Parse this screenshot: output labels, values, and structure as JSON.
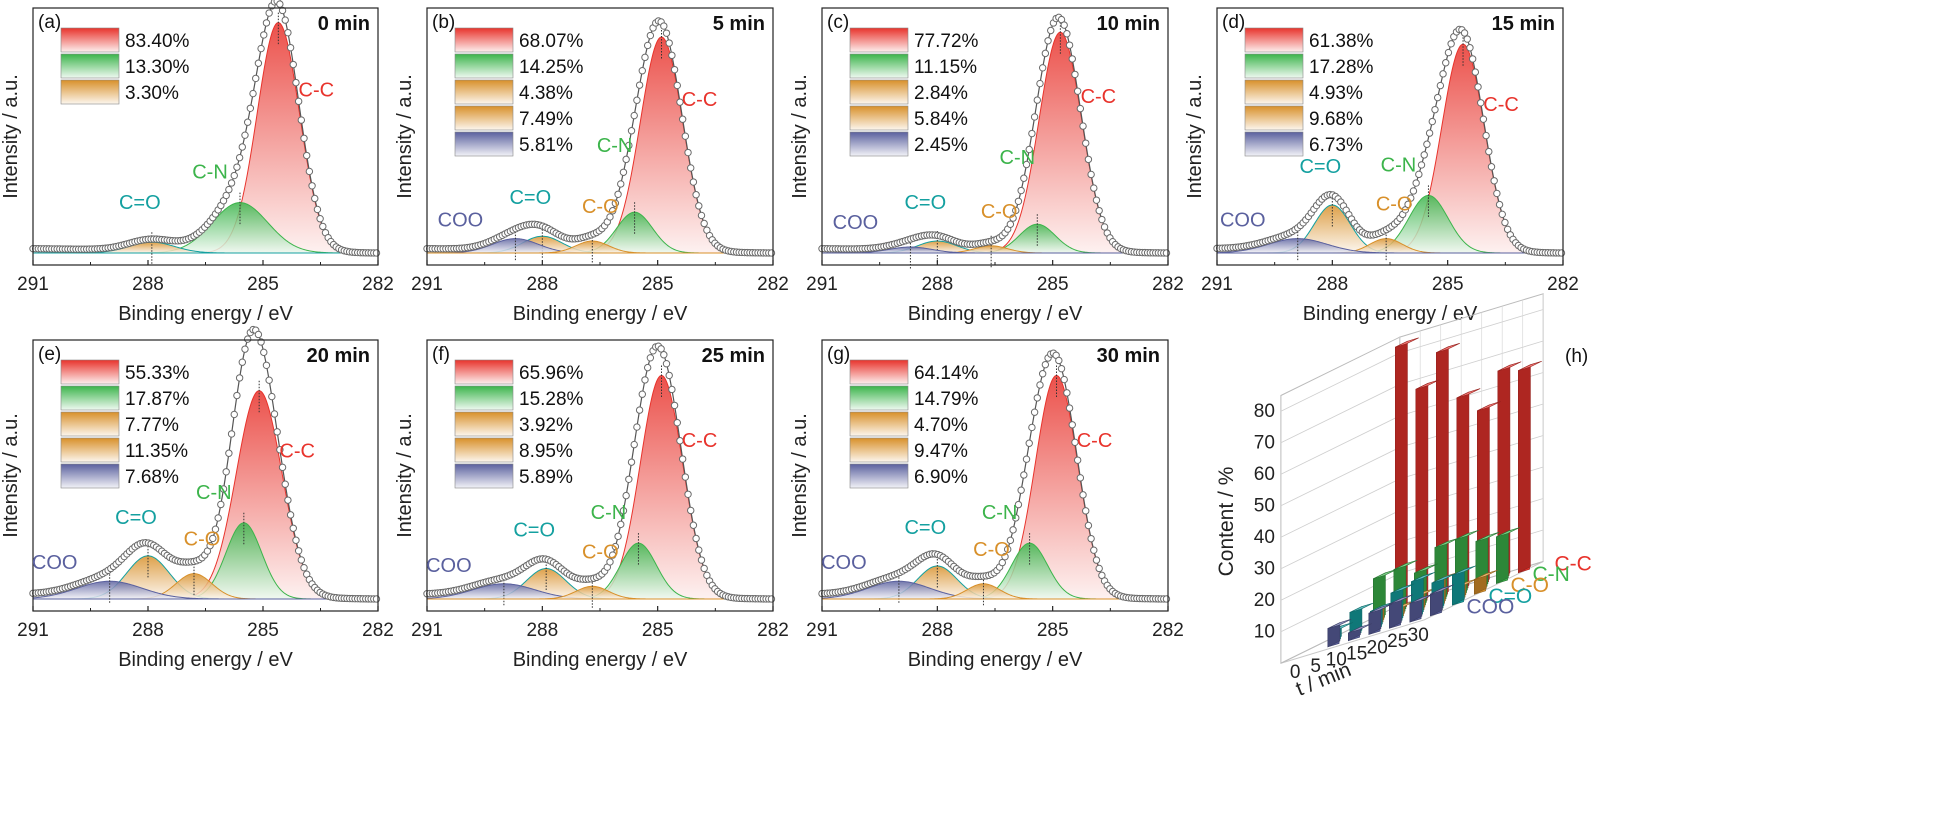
{
  "colors": {
    "C-C": "#e8332c",
    "C-N": "#3cb44b",
    "C-O": "#d8902a",
    "C=O": "#14a0a0",
    "COO": "#5a609e",
    "fit": "#555555",
    "axis": "#222222"
  },
  "chart_data": [
    {
      "type": "line",
      "panel": "(a)",
      "time": "0 min",
      "xlabel": "Binding energy / eV",
      "ylabel": "Intensity / a.u.",
      "xlim": [
        291,
        282
      ],
      "x_ticks": [
        291,
        288,
        285,
        282
      ],
      "tick_labels": [
        "291",
        "288",
        "285",
        "282"
      ],
      "peaks": [
        {
          "name": "C-C",
          "position": 284.6,
          "percent": "83.40%",
          "height": 0.96,
          "fwhm": 1.3
        },
        {
          "name": "C-N",
          "position": 285.6,
          "percent": "13.30%",
          "height": 0.21,
          "fwhm": 1.7
        },
        {
          "name": "C=O",
          "position": 287.9,
          "percent": "3.30%",
          "height": 0.045,
          "fwhm": 1.4
        }
      ],
      "legend": [
        "83.40%",
        "13.30%",
        "3.30%"
      ]
    },
    {
      "type": "line",
      "panel": "(b)",
      "time": "5 min",
      "xlabel": "Binding energy / eV",
      "ylabel": "Intensity / a.u.",
      "xlim": [
        291,
        282
      ],
      "x_ticks": [
        291,
        288,
        285,
        282
      ],
      "tick_labels": [
        "291",
        "288",
        "285",
        "282"
      ],
      "peaks": [
        {
          "name": "C-C",
          "position": 284.9,
          "percent": "68.07%",
          "height": 0.9,
          "fwhm": 1.3
        },
        {
          "name": "C-N",
          "position": 285.6,
          "percent": "14.25%",
          "height": 0.17,
          "fwhm": 1.1
        },
        {
          "name": "C-O",
          "position": 286.7,
          "percent": "4.38%",
          "height": 0.05,
          "fwhm": 1.0
        },
        {
          "name": "C=O",
          "position": 288.0,
          "percent": "7.49%",
          "height": 0.07,
          "fwhm": 1.2
        },
        {
          "name": "COO",
          "position": 288.7,
          "percent": "5.81%",
          "height": 0.06,
          "fwhm": 1.4
        }
      ],
      "legend": [
        "68.07%",
        "14.25%",
        "4.38%",
        "7.49%",
        "5.81%"
      ]
    },
    {
      "type": "line",
      "panel": "(c)",
      "time": "10 min",
      "xlabel": "Binding energy / eV",
      "ylabel": "Intensity / a.u.",
      "xlim": [
        291,
        282
      ],
      "x_ticks": [
        291,
        288,
        285,
        282
      ],
      "tick_labels": [
        "291",
        "288",
        "285",
        "282"
      ],
      "peaks": [
        {
          "name": "C-C",
          "position": 284.8,
          "percent": "77.72%",
          "height": 0.92,
          "fwhm": 1.3
        },
        {
          "name": "C-N",
          "position": 285.4,
          "percent": "11.15%",
          "height": 0.12,
          "fwhm": 1.1
        },
        {
          "name": "C-O",
          "position": 286.6,
          "percent": "2.84%",
          "height": 0.03,
          "fwhm": 1.0
        },
        {
          "name": "C=O",
          "position": 288.0,
          "percent": "5.84%",
          "height": 0.05,
          "fwhm": 1.2
        },
        {
          "name": "COO",
          "position": 288.7,
          "percent": "2.45%",
          "height": 0.025,
          "fwhm": 1.3
        }
      ],
      "legend": [
        "77.72%",
        "11.15%",
        "2.84%",
        "5.84%",
        "2.45%"
      ]
    },
    {
      "type": "line",
      "panel": "(d)",
      "time": "15 min",
      "xlabel": "Binding energy / eV",
      "ylabel": "Intensity / a.u.",
      "xlim": [
        291,
        282
      ],
      "x_ticks": [
        291,
        288,
        285,
        282
      ],
      "tick_labels": [
        "291",
        "288",
        "285",
        "282"
      ],
      "peaks": [
        {
          "name": "C-C",
          "position": 284.6,
          "percent": "61.38%",
          "height": 0.87,
          "fwhm": 1.3
        },
        {
          "name": "C-N",
          "position": 285.5,
          "percent": "17.28%",
          "height": 0.24,
          "fwhm": 1.2
        },
        {
          "name": "C-O",
          "position": 286.6,
          "percent": "4.93%",
          "height": 0.06,
          "fwhm": 1.0
        },
        {
          "name": "C=O",
          "position": 288.0,
          "percent": "9.68%",
          "height": 0.2,
          "fwhm": 1.1
        },
        {
          "name": "COO",
          "position": 288.9,
          "percent": "6.73%",
          "height": 0.06,
          "fwhm": 1.8
        }
      ],
      "legend": [
        "61.38%",
        "17.28%",
        "4.93%",
        "9.68%",
        "6.73%"
      ]
    },
    {
      "type": "line",
      "panel": "(e)",
      "time": "20 min",
      "xlabel": "Binding energy / eV",
      "ylabel": "Intensity / a.u.",
      "xlim": [
        291,
        282
      ],
      "x_ticks": [
        291,
        288,
        285,
        282
      ],
      "tick_labels": [
        "291",
        "288",
        "285",
        "282"
      ],
      "peaks": [
        {
          "name": "C-C",
          "position": 285.1,
          "percent": "55.33%",
          "height": 0.82,
          "fwhm": 1.4
        },
        {
          "name": "C-N",
          "position": 285.5,
          "percent": "17.87%",
          "height": 0.3,
          "fwhm": 1.1
        },
        {
          "name": "C-O",
          "position": 286.8,
          "percent": "7.77%",
          "height": 0.1,
          "fwhm": 1.1
        },
        {
          "name": "C=O",
          "position": 288.0,
          "percent": "11.35%",
          "height": 0.17,
          "fwhm": 1.3
        },
        {
          "name": "COO",
          "position": 289.0,
          "percent": "7.68%",
          "height": 0.07,
          "fwhm": 2.0
        }
      ],
      "legend": [
        "55.33%",
        "17.87%",
        "7.77%",
        "11.35%",
        "7.68%"
      ]
    },
    {
      "type": "line",
      "panel": "(f)",
      "time": "25 min",
      "xlabel": "Binding energy / eV",
      "ylabel": "Intensity / a.u.",
      "xlim": [
        291,
        282
      ],
      "x_ticks": [
        291,
        288,
        285,
        282
      ],
      "tick_labels": [
        "291",
        "288",
        "285",
        "282"
      ],
      "peaks": [
        {
          "name": "C-C",
          "position": 284.9,
          "percent": "65.96%",
          "height": 0.88,
          "fwhm": 1.3
        },
        {
          "name": "C-N",
          "position": 285.5,
          "percent": "15.28%",
          "height": 0.22,
          "fwhm": 1.1
        },
        {
          "name": "C-O",
          "position": 286.7,
          "percent": "3.92%",
          "height": 0.05,
          "fwhm": 1.0
        },
        {
          "name": "C=O",
          "position": 287.9,
          "percent": "8.95%",
          "height": 0.12,
          "fwhm": 1.2
        },
        {
          "name": "COO",
          "position": 289.0,
          "percent": "5.89%",
          "height": 0.06,
          "fwhm": 1.9
        }
      ],
      "legend": [
        "65.96%",
        "15.28%",
        "3.92%",
        "8.95%",
        "5.89%"
      ]
    },
    {
      "type": "line",
      "panel": "(g)",
      "time": "30 min",
      "xlabel": "Binding energy / eV",
      "ylabel": "Intensity / a.u.",
      "xlim": [
        291,
        282
      ],
      "x_ticks": [
        291,
        288,
        285,
        282
      ],
      "tick_labels": [
        "291",
        "288",
        "285",
        "282"
      ],
      "peaks": [
        {
          "name": "C-C",
          "position": 284.9,
          "percent": "64.14%",
          "height": 0.88,
          "fwhm": 1.3
        },
        {
          "name": "C-N",
          "position": 285.6,
          "percent": "14.79%",
          "height": 0.22,
          "fwhm": 1.1
        },
        {
          "name": "C-O",
          "position": 286.8,
          "percent": "4.70%",
          "height": 0.06,
          "fwhm": 1.0
        },
        {
          "name": "C=O",
          "position": 288.0,
          "percent": "9.47%",
          "height": 0.13,
          "fwhm": 1.2
        },
        {
          "name": "COO",
          "position": 289.0,
          "percent": "6.90%",
          "height": 0.07,
          "fwhm": 1.9
        }
      ],
      "legend": [
        "64.14%",
        "14.79%",
        "4.70%",
        "9.47%",
        "6.90%"
      ]
    },
    {
      "type": "bar",
      "panel": "(h)",
      "chart_subtype": "3d-bar",
      "zlabel": "Content / %",
      "xlabel": "t / min",
      "times": [
        "0",
        "5",
        "10",
        "15",
        "20",
        "25",
        "30"
      ],
      "time_ticks": [
        "0",
        "5",
        "10",
        "15",
        "20",
        "25",
        "30"
      ],
      "content_ticks": [
        "10",
        "20",
        "30",
        "40",
        "50",
        "60",
        "70",
        "80"
      ],
      "zlim": [
        0,
        85
      ],
      "series": [
        {
          "name": "C-C",
          "values": [
            83.4,
            68.07,
            77.72,
            61.38,
            55.33,
            65.96,
            64.14
          ]
        },
        {
          "name": "C-N",
          "values": [
            13.3,
            14.25,
            11.15,
            17.28,
            17.87,
            15.28,
            14.79
          ]
        },
        {
          "name": "C-O",
          "values": [
            0,
            4.38,
            2.84,
            4.93,
            7.77,
            3.92,
            4.7
          ]
        },
        {
          "name": "C=O",
          "values": [
            3.3,
            7.49,
            5.84,
            9.68,
            11.35,
            8.95,
            9.47
          ]
        },
        {
          "name": "COO",
          "values": [
            0,
            5.81,
            2.45,
            6.73,
            7.68,
            5.89,
            6.9
          ]
        }
      ]
    }
  ]
}
